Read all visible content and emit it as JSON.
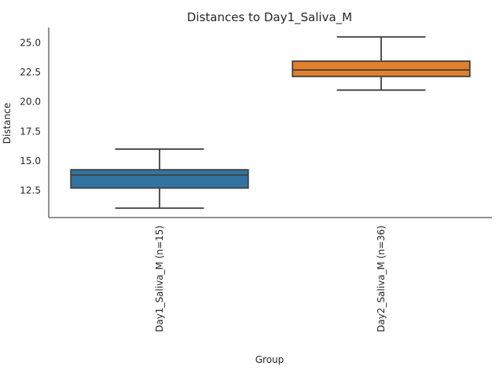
{
  "chart_data": {
    "type": "box",
    "title": "Distances to Day1_Saliva_M",
    "xlabel": "Group",
    "ylabel": "Distance",
    "ylim": [
      10.2,
      26.3
    ],
    "yticks": [
      12.5,
      15.0,
      17.5,
      20.0,
      22.5,
      25.0
    ],
    "yticklabels": [
      "12.5",
      "15.0",
      "17.5",
      "20.0",
      "22.5",
      "25.0"
    ],
    "grid": false,
    "categories": [
      "Day1_Saliva_M (n=15)",
      "Day2_Saliva_M (n=36)"
    ],
    "boxes": [
      {
        "category": "Day1_Saliva_M (n=15)",
        "whisker_low": 11.0,
        "q1": 12.7,
        "median": 13.8,
        "q3": 14.25,
        "whisker_high": 16.0,
        "color": "#3274a1"
      },
      {
        "category": "Day2_Saliva_M (n=36)",
        "whisker_low": 21.0,
        "q1": 22.15,
        "median": 22.7,
        "q3": 23.45,
        "whisker_high": 25.5,
        "color": "#e1812c"
      }
    ]
  }
}
